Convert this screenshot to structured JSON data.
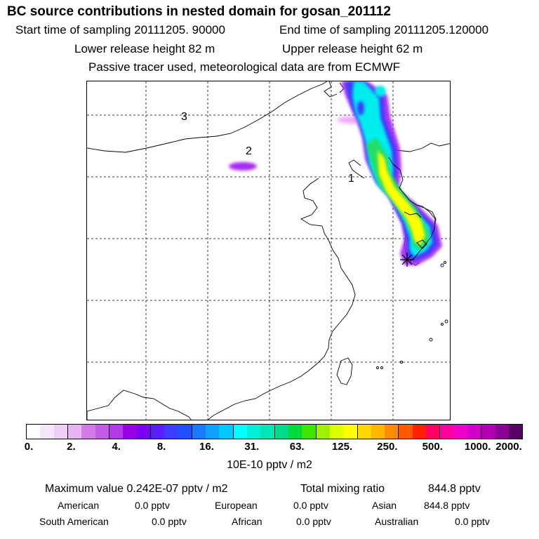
{
  "header": {
    "title": "BC  source contributions in nested domain for gosan_201112",
    "start_label": "Start time of sampling 20111205. 90000",
    "end_label": "End time of sampling 20111205.120000",
    "lower_label": "Lower release height   82 m",
    "upper_label": "Upper release height   62 m",
    "note": "Passive tracer used, meteorological data are from ECMWF"
  },
  "map": {
    "cluster_labels": [
      "1",
      "2",
      "3"
    ],
    "receptor_icon": "star-marker-icon",
    "plume_colors": {
      "magenta": "#a020f0",
      "blue": "#3b3bff",
      "cyan": "#00eeee",
      "green": "#22dd66",
      "yellow": "#ffff00",
      "light_magenta": "#e07ef0"
    }
  },
  "colorbar": {
    "colors": [
      "#ffffff",
      "#f6e6fb",
      "#eecdf6",
      "#e6b4f2",
      "#d27be8",
      "#c45ae6",
      "#b23ae6",
      "#9a00e8",
      "#7a00f0",
      "#5a1dff",
      "#3c3cff",
      "#2050ff",
      "#1a7aff",
      "#10a0ff",
      "#00c8ff",
      "#00ffff",
      "#00f0d8",
      "#00e6b4",
      "#00dc8c",
      "#00dc3c",
      "#3ce600",
      "#a0f000",
      "#dcff00",
      "#ffff00",
      "#ffd800",
      "#ffb400",
      "#ff8c00",
      "#ff5a00",
      "#ff2000",
      "#ff0064",
      "#ff00a0",
      "#f000c8",
      "#d200c8",
      "#b400b4",
      "#8c0096",
      "#5a0064"
    ],
    "tick_labels": [
      "0.",
      "2.",
      "4.",
      "8.",
      "16.",
      "31.",
      "63.",
      "125.",
      "250.",
      "500.",
      "1000.",
      "2000."
    ],
    "unit": "10E-10 pptv / m2"
  },
  "summary": {
    "max_label": "Maximum value  0.242E-07 pptv / m2",
    "total_label": "Total mixing ratio",
    "total_value": "844.8 pptv",
    "regions": [
      {
        "name": "American",
        "value": "0.0 pptv"
      },
      {
        "name": "European",
        "value": "0.0 pptv"
      },
      {
        "name": "Asian",
        "value": "844.8 pptv"
      },
      {
        "name": "South American",
        "value": "0.0 pptv"
      },
      {
        "name": "African",
        "value": "0.0 pptv"
      },
      {
        "name": "Australian",
        "value": "0.0 pptv"
      }
    ]
  }
}
